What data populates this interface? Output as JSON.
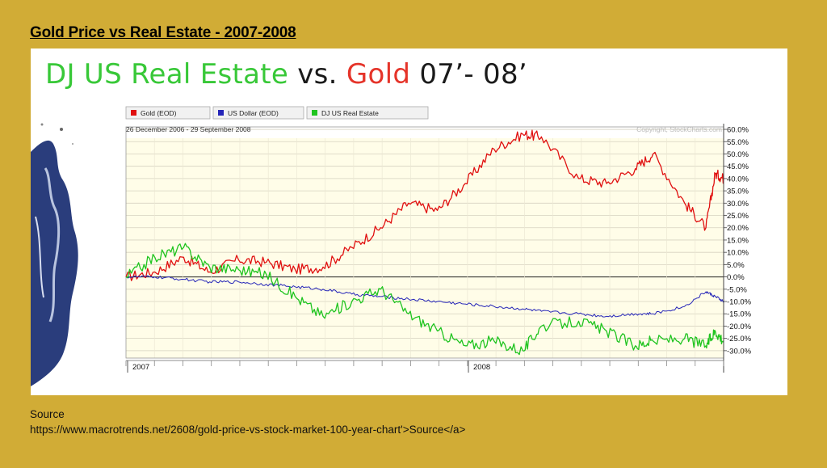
{
  "slide": {
    "title": "Gold Price vs Real Estate -  2007-2008",
    "source_label": "Source",
    "source_url": "https://www.macrotrends.net/2608/gold-price-vs-stock-market-100-year-chart'>Source</a>"
  },
  "headline": {
    "part1": "DJ US Real Estate",
    "part2": " vs. ",
    "part3": "Gold",
    "part4": " 07’- 08’"
  },
  "colors": {
    "background": "#D1AC36",
    "headline_green": "#38C838",
    "headline_red": "#E5342A",
    "gold": "#E01010",
    "usd": "#2525B8",
    "realestate": "#1FC41F",
    "plot_fill": "#FFFDE8"
  },
  "chart_data": {
    "type": "line",
    "date_range": "26 December 2006 - 29 September 2008",
    "copyright": "Copyright, StockCharts.com",
    "x_labels": [
      "2007",
      "2008"
    ],
    "x": [
      "2006-12-26",
      "2007-01-26",
      "2007-02-26",
      "2007-03-26",
      "2007-04-26",
      "2007-05-26",
      "2007-06-26",
      "2007-07-26",
      "2007-08-26",
      "2007-09-26",
      "2007-10-26",
      "2007-11-26",
      "2007-12-26",
      "2008-01-26",
      "2008-02-26",
      "2008-03-17",
      "2008-04-26",
      "2008-05-26",
      "2008-06-26",
      "2008-07-15",
      "2008-08-18",
      "2008-09-10",
      "2008-09-20",
      "2008-09-29"
    ],
    "ylim": [
      -33,
      61
    ],
    "y_ticks": [
      "60.0%",
      "55.0%",
      "50.0%",
      "45.0%",
      "40.0%",
      "35.0%",
      "30.0%",
      "25.0%",
      "20.0%",
      "15.0%",
      "10.0%",
      "5.0%",
      "0.0%",
      "-5.0%",
      "-10.0%",
      "-15.0%",
      "-20.0%",
      "-25.0%",
      "-30.0%"
    ],
    "grid": true,
    "legend_position": "top-left",
    "series": [
      {
        "name": "Gold (EOD)",
        "color_key": "gold",
        "values": [
          0,
          2,
          8,
          2,
          7,
          6,
          3,
          4,
          12,
          20,
          30,
          27,
          38,
          52,
          58,
          57,
          40,
          38,
          44,
          50,
          30,
          20,
          42,
          40
        ]
      },
      {
        "name": "US Dollar (EOD)",
        "color_key": "usd",
        "values": [
          0,
          0,
          -1,
          -2,
          -2,
          -3,
          -4,
          -5,
          -7,
          -8,
          -9,
          -10,
          -11,
          -12,
          -13,
          -14,
          -15,
          -16,
          -15,
          -15,
          -12,
          -6,
          -8,
          -10
        ]
      },
      {
        "name": "DJ US Real Estate",
        "color_key": "realestate",
        "values": [
          0,
          8,
          12,
          4,
          3,
          1,
          -8,
          -16,
          -10,
          -5,
          -15,
          -22,
          -28,
          -26,
          -30,
          -20,
          -18,
          -22,
          -28,
          -26,
          -25,
          -28,
          -22,
          -26
        ]
      }
    ]
  }
}
